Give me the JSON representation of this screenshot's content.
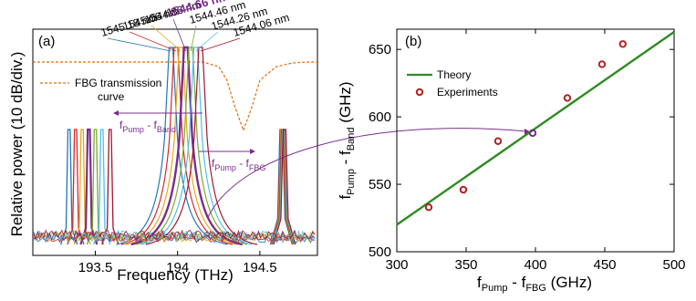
{
  "chart_data": [
    {
      "id": "a",
      "panel_label": "(a)",
      "type": "line",
      "title": "",
      "xlabel": "Frequency (THz)",
      "ylabel": "Relative power (10 dB/div.)",
      "xlim": [
        193.12,
        194.85
      ],
      "x_ticks": [
        "193.5",
        "194",
        "194.5"
      ],
      "x_tick_values": [
        193.5,
        194.0,
        194.5
      ],
      "grid": false,
      "legend": {
        "placement": "top-left",
        "entries": [
          "FBG transmission curve"
        ]
      },
      "fbg_curve": {
        "name": "FBG transmission curve",
        "color": "#e46c0a",
        "x": [
          193.12,
          193.3,
          193.5,
          193.7,
          193.85,
          193.95,
          194.05,
          194.15,
          194.25,
          194.3,
          194.35,
          194.4,
          194.45,
          194.5,
          194.6,
          194.7,
          194.8,
          194.85
        ],
        "y": [
          0.0,
          0.0,
          0.0,
          0.0,
          0.0,
          0.0,
          0.0,
          0.0,
          0.05,
          0.2,
          0.5,
          0.75,
          0.5,
          0.2,
          0.05,
          0.01,
          0.0,
          0.0
        ]
      },
      "wavelength_labels": [
        {
          "text": "1545.18 nm",
          "highlight": false
        },
        {
          "text": "1545.06 nm",
          "highlight": false
        },
        {
          "text": "1544.86 nm",
          "highlight": false
        },
        {
          "text": "1544.66 nm",
          "highlight": true
        },
        {
          "text": "1544.46 nm",
          "highlight": false
        },
        {
          "text": "1544.26 nm",
          "highlight": false
        },
        {
          "text": "1544.06 nm",
          "highlight": false
        }
      ],
      "peak_colors": [
        "#1f77b4",
        "#d62728",
        "#e6a817",
        "#7b2d8e",
        "#77ac30",
        "#4dbeee",
        "#a2142f"
      ],
      "band_peaks_x": [
        193.34,
        193.38,
        193.42,
        193.46,
        193.5,
        193.54,
        193.59
      ],
      "center_peaks_x": [
        193.96,
        193.99,
        194.02,
        194.05,
        194.08,
        194.11,
        194.14
      ],
      "right_peak_x": 194.64,
      "annotations": {
        "pump_band_main": "f",
        "pump_band_sub1": "Pump",
        "pump_band_sep": " - f",
        "pump_band_sub2": "Band",
        "pump_fbg_main": "f",
        "pump_fbg_sub1": "Pump",
        "pump_fbg_sep": " - f",
        "pump_fbg_sub2": "FBG"
      }
    },
    {
      "id": "b",
      "panel_label": "(b)",
      "type": "line",
      "title": "",
      "xlabel_main": "f",
      "xlabel_sub1": "Pump",
      "xlabel_sep": " - f",
      "xlabel_sub2": "FBG",
      "xlabel_unit": " (GHz)",
      "ylabel_main": "f",
      "ylabel_sub1": "Pump",
      "ylabel_sep": " - f",
      "ylabel_sub2": "Band",
      "ylabel_unit": " (GHz)",
      "xlim": [
        300,
        500
      ],
      "ylim": [
        500,
        665
      ],
      "x_ticks": [
        300,
        350,
        400,
        450,
        500
      ],
      "y_ticks": [
        500,
        550,
        600,
        650
      ],
      "grid": false,
      "legend": {
        "placement": "top-left"
      },
      "series": [
        {
          "name": "Theory",
          "kind": "line",
          "color": "#2e8b22",
          "x": [
            300,
            500
          ],
          "y": [
            520,
            663
          ]
        },
        {
          "name": "Experiments",
          "kind": "scatter",
          "color": "#b22222",
          "x": [
            323,
            348,
            373,
            398,
            423,
            448,
            463
          ],
          "y": [
            533,
            546,
            582,
            588,
            614,
            639,
            654
          ],
          "highlight_index": 3,
          "highlight_color": "#7b2d8e"
        }
      ]
    }
  ]
}
